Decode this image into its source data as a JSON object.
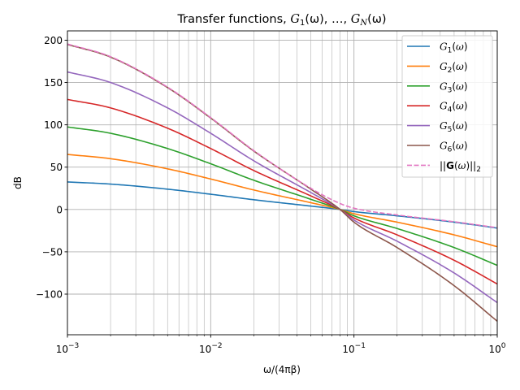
{
  "chart_data": {
    "type": "line",
    "title": "Transfer functions, G₁(ω), …, G_N(ω)",
    "title_parts": {
      "prefix": "Transfer functions, ",
      "g_first": "G",
      "sub_first": "1",
      "omega_first": "(ω), …, ",
      "g_last": "G",
      "sub_last": "N",
      "omega_last": "(ω)"
    },
    "xlabel": "ω/(4πβ)",
    "ylabel": "dB",
    "x_scale": "log",
    "xlim": [
      0.001,
      1.0
    ],
    "ylim": [
      -148,
      211
    ],
    "grid": "major and minor",
    "legend_position": "top-right",
    "x_ticks": [
      {
        "value": 0.001,
        "base": "10",
        "exp": "−3"
      },
      {
        "value": 0.01,
        "base": "10",
        "exp": "−2"
      },
      {
        "value": 0.1,
        "base": "10",
        "exp": "−1"
      },
      {
        "value": 1.0,
        "base": "10",
        "exp": "0"
      }
    ],
    "y_ticks": [
      {
        "value": 200,
        "label": "200"
      },
      {
        "value": 150,
        "label": "150"
      },
      {
        "value": 100,
        "label": "100"
      },
      {
        "value": 50,
        "label": "50"
      },
      {
        "value": 0,
        "label": "0"
      },
      {
        "value": -50,
        "label": "−50"
      },
      {
        "value": -100,
        "label": "−100"
      }
    ],
    "series": [
      {
        "name": "G₁(ω)",
        "sub": "1",
        "color": "#1f77b4",
        "dash": false,
        "x": [
          0.001,
          0.002,
          0.005,
          0.01,
          0.02,
          0.05,
          0.08,
          0.1,
          0.2,
          0.5,
          1.0
        ],
        "y": [
          32.5,
          30,
          24,
          18,
          11.5,
          4,
          0,
          -2.5,
          -7.5,
          -15,
          -22
        ]
      },
      {
        "name": "G₂(ω)",
        "sub": "2",
        "color": "#ff7f0e",
        "dash": false,
        "x": [
          0.001,
          0.002,
          0.005,
          0.01,
          0.02,
          0.05,
          0.08,
          0.1,
          0.2,
          0.5,
          1.0
        ],
        "y": [
          65,
          60,
          48,
          36,
          23,
          8,
          0,
          -5,
          -15,
          -30,
          -44
        ]
      },
      {
        "name": "G₃(ω)",
        "sub": "3",
        "color": "#2ca02c",
        "dash": false,
        "x": [
          0.001,
          0.002,
          0.005,
          0.01,
          0.02,
          0.05,
          0.08,
          0.1,
          0.2,
          0.5,
          1.0
        ],
        "y": [
          97.5,
          90,
          72,
          54,
          34.5,
          12,
          0,
          -7.5,
          -22.5,
          -45,
          -66
        ]
      },
      {
        "name": "G₄(ω)",
        "sub": "4",
        "color": "#d62728",
        "dash": false,
        "x": [
          0.001,
          0.002,
          0.005,
          0.01,
          0.02,
          0.05,
          0.08,
          0.1,
          0.2,
          0.5,
          1.0
        ],
        "y": [
          130,
          120,
          96,
          72,
          46,
          16,
          0,
          -10,
          -30,
          -60,
          -88
        ]
      },
      {
        "name": "G₅(ω)",
        "sub": "5",
        "color": "#9467bd",
        "dash": false,
        "x": [
          0.001,
          0.002,
          0.005,
          0.01,
          0.02,
          0.05,
          0.08,
          0.1,
          0.2,
          0.5,
          1.0
        ],
        "y": [
          162.5,
          150,
          120,
          90,
          57.5,
          20,
          0,
          -12.5,
          -37.5,
          -75,
          -110
        ]
      },
      {
        "name": "G₆(ω)",
        "sub": "6",
        "color": "#8c564b",
        "dash": false,
        "x": [
          0.001,
          0.002,
          0.005,
          0.01,
          0.02,
          0.05,
          0.08,
          0.1,
          0.2,
          0.5,
          1.0
        ],
        "y": [
          195,
          180,
          144,
          108,
          69,
          24,
          0,
          -15,
          -45,
          -90,
          -132
        ]
      },
      {
        "name": "||G(ω)||₂",
        "sub": "2",
        "color": "#e377c2",
        "dash": true,
        "x": [
          0.001,
          0.002,
          0.005,
          0.01,
          0.02,
          0.05,
          0.08,
          0.1,
          0.2,
          0.5,
          1.0
        ],
        "y": [
          195.5,
          180.5,
          144.5,
          108.5,
          69.5,
          25,
          7,
          1.5,
          -6.5,
          -14.5,
          -21.5
        ]
      }
    ]
  }
}
